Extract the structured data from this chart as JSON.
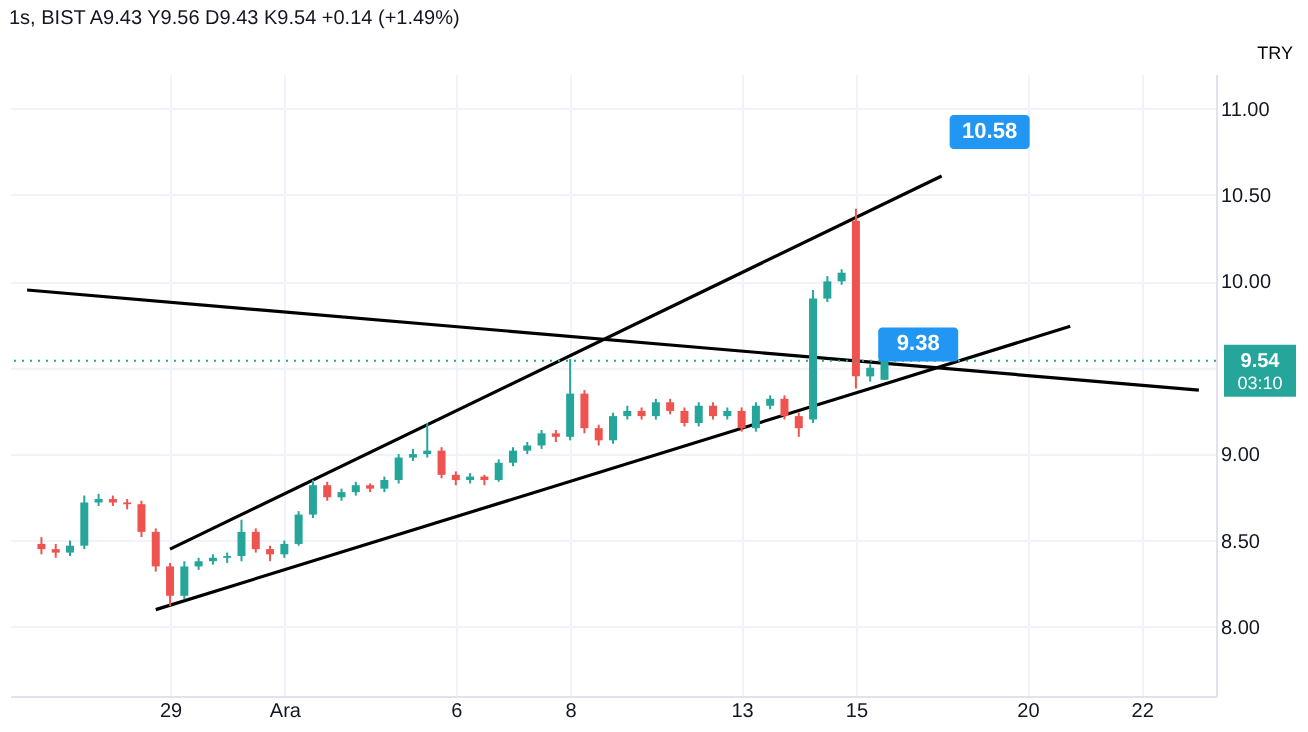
{
  "chart_data": {
    "type": "candlestick",
    "title": "1s, BIST  A9.43 Y9.56 D9.43 K9.54 +0.14 (+1.49%)",
    "ylabel": "TRY",
    "categories": [
      null,
      null,
      null,
      null,
      null,
      null,
      null,
      null,
      null,
      null,
      "29",
      null,
      null,
      null,
      null,
      null,
      null,
      null,
      "Ara",
      null,
      null,
      null,
      null,
      null,
      null,
      null,
      null,
      null,
      null,
      null,
      "6",
      null,
      null,
      null,
      null,
      null,
      null,
      null,
      "8",
      null,
      null,
      null,
      null,
      null,
      null,
      null,
      null,
      null,
      null,
      null,
      "13",
      null,
      null,
      null,
      null,
      null,
      null,
      null,
      "15",
      null,
      null,
      null,
      null,
      null,
      null,
      null,
      null,
      null,
      null,
      null,
      "20",
      null,
      null,
      null,
      null,
      null,
      null,
      null,
      "22",
      null,
      null,
      null,
      null
    ],
    "ohlc": [
      null,
      [
        8.48,
        8.52,
        8.42,
        8.45
      ],
      [
        8.45,
        8.48,
        8.4,
        8.43
      ],
      [
        8.43,
        8.5,
        8.41,
        8.47
      ],
      [
        8.47,
        8.76,
        8.45,
        8.72
      ],
      [
        8.72,
        8.77,
        8.7,
        8.74
      ],
      [
        8.74,
        8.76,
        8.7,
        8.72
      ],
      [
        8.72,
        8.74,
        8.68,
        8.71
      ],
      [
        8.71,
        8.73,
        8.52,
        8.55
      ],
      [
        8.55,
        8.57,
        8.32,
        8.35
      ],
      [
        8.35,
        8.37,
        8.12,
        8.18
      ],
      [
        8.18,
        8.38,
        8.16,
        8.35
      ],
      [
        8.35,
        8.4,
        8.33,
        8.38
      ],
      [
        8.38,
        8.42,
        8.36,
        8.4
      ],
      [
        8.4,
        8.43,
        8.37,
        8.41
      ],
      [
        8.41,
        8.62,
        8.38,
        8.55
      ],
      [
        8.55,
        8.57,
        8.43,
        8.45
      ],
      [
        8.45,
        8.47,
        8.38,
        8.42
      ],
      [
        8.42,
        8.5,
        8.4,
        8.48
      ],
      [
        8.48,
        8.67,
        8.47,
        8.65
      ],
      [
        8.65,
        8.85,
        8.63,
        8.82
      ],
      [
        8.82,
        8.84,
        8.73,
        8.75
      ],
      [
        8.75,
        8.8,
        8.73,
        8.78
      ],
      [
        8.78,
        8.84,
        8.76,
        8.82
      ],
      [
        8.82,
        8.83,
        8.78,
        8.8
      ],
      [
        8.8,
        8.87,
        8.78,
        8.85
      ],
      [
        8.85,
        9,
        8.83,
        8.98
      ],
      [
        8.98,
        9.03,
        8.96,
        9
      ],
      [
        9,
        9.18,
        8.98,
        9.02
      ],
      [
        9.02,
        9.04,
        8.86,
        8.88
      ],
      [
        8.88,
        8.9,
        8.82,
        8.85
      ],
      [
        8.85,
        8.89,
        8.83,
        8.87
      ],
      [
        8.87,
        8.88,
        8.82,
        8.85
      ],
      [
        8.85,
        8.97,
        8.84,
        8.95
      ],
      [
        8.95,
        9.04,
        8.93,
        9.02
      ],
      [
        9.02,
        9.07,
        9,
        9.05
      ],
      [
        9.05,
        9.14,
        9.03,
        9.12
      ],
      [
        9.12,
        9.14,
        9.07,
        9.1
      ],
      [
        9.1,
        9.55,
        9.08,
        9.35
      ],
      [
        9.35,
        9.37,
        9.12,
        9.15
      ],
      [
        9.15,
        9.17,
        9.05,
        9.08
      ],
      [
        9.08,
        9.24,
        9.06,
        9.22
      ],
      [
        9.22,
        9.28,
        9.2,
        9.25
      ],
      [
        9.25,
        9.27,
        9.2,
        9.22
      ],
      [
        9.22,
        9.32,
        9.2,
        9.3
      ],
      [
        9.3,
        9.32,
        9.23,
        9.25
      ],
      [
        9.25,
        9.27,
        9.16,
        9.18
      ],
      [
        9.18,
        9.3,
        9.16,
        9.28
      ],
      [
        9.28,
        9.3,
        9.2,
        9.22
      ],
      [
        9.22,
        9.27,
        9.2,
        9.25
      ],
      [
        9.25,
        9.27,
        9.13,
        9.15
      ],
      [
        9.15,
        9.3,
        9.13,
        9.28
      ],
      [
        9.28,
        9.34,
        9.26,
        9.32
      ],
      [
        9.32,
        9.34,
        9.2,
        9.22
      ],
      [
        9.22,
        9.24,
        9.1,
        9.15
      ],
      [
        9.2,
        9.95,
        9.18,
        9.9
      ],
      [
        9.9,
        10.03,
        9.88,
        10
      ],
      [
        10,
        10.07,
        9.98,
        10.05
      ],
      [
        10.35,
        10.42,
        9.38,
        9.45
      ],
      [
        9.45,
        9.52,
        9.42,
        9.5
      ],
      [
        9.43,
        9.56,
        9.43,
        9.54
      ],
      null,
      null,
      null,
      null,
      null,
      null,
      null,
      null,
      null,
      null,
      null,
      null,
      null,
      null,
      null,
      null,
      null,
      null,
      null,
      null,
      null,
      null
    ],
    "colors": [
      null,
      "#ef5350",
      "#ef5350",
      "#26a69a",
      "#26a69a",
      "#26a69a",
      "#ef5350",
      "#ef5350",
      "#ef5350",
      "#ef5350",
      "#ef5350",
      "#26a69a",
      "#26a69a",
      "#26a69a",
      "#26a69a",
      "#26a69a",
      "#ef5350",
      "#ef5350",
      "#26a69a",
      "#26a69a",
      "#26a69a",
      "#ef5350",
      "#26a69a",
      "#26a69a",
      "#ef5350",
      "#26a69a",
      "#26a69a",
      "#26a69a",
      "#26a69a",
      "#ef5350",
      "#ef5350",
      "#26a69a",
      "#ef5350",
      "#26a69a",
      "#26a69a",
      "#26a69a",
      "#26a69a",
      "#ef5350",
      "#26a69a",
      "#ef5350",
      "#ef5350",
      "#26a69a",
      "#26a69a",
      "#ef5350",
      "#26a69a",
      "#ef5350",
      "#ef5350",
      "#26a69a",
      "#ef5350",
      "#26a69a",
      "#ef5350",
      "#26a69a",
      "#26a69a",
      "#ef5350",
      "#ef5350",
      "#26a69a",
      "#26a69a",
      "#26a69a",
      "#ef5350",
      "#26a69a",
      "#26a69a",
      null,
      null,
      null,
      null,
      null,
      null,
      null,
      null,
      null,
      null,
      null,
      null,
      null,
      null,
      null,
      null,
      null,
      null,
      null,
      null,
      null,
      null
    ],
    "series": [
      {
        "type": "line",
        "color": "#000000",
        "values": [
          null,
          null,
          null,
          null,
          null,
          null,
          null,
          null,
          null,
          null,
          8.45,
          null,
          null,
          null,
          null,
          null,
          null,
          null,
          null,
          null,
          null,
          null,
          null,
          null,
          null,
          null,
          null,
          null,
          null,
          null,
          null,
          null,
          null,
          null,
          null,
          null,
          null,
          null,
          null,
          null,
          null,
          null,
          null,
          null,
          null,
          null,
          null,
          null,
          null,
          null,
          null,
          null,
          null,
          null,
          null,
          null,
          null,
          null,
          null,
          null,
          null,
          null,
          null,
          null,
          10.61,
          null,
          null,
          null,
          null,
          null,
          null,
          null,
          null,
          null,
          null,
          null,
          null,
          null,
          null,
          null,
          null,
          null,
          null
        ]
      },
      {
        "type": "line",
        "color": "#000000",
        "values": [
          null,
          null,
          null,
          null,
          null,
          null,
          null,
          null,
          null,
          8.1,
          null,
          null,
          null,
          null,
          null,
          null,
          null,
          null,
          null,
          null,
          null,
          null,
          null,
          null,
          null,
          null,
          null,
          null,
          null,
          null,
          null,
          null,
          null,
          null,
          null,
          null,
          null,
          null,
          null,
          null,
          null,
          null,
          null,
          null,
          null,
          null,
          null,
          null,
          null,
          null,
          null,
          null,
          null,
          null,
          null,
          null,
          null,
          null,
          null,
          9.38,
          null,
          null,
          null,
          null,
          null,
          null,
          null,
          null,
          null,
          null,
          null,
          null,
          null,
          9.74,
          null,
          null,
          null,
          null,
          null,
          null,
          null,
          null,
          null
        ]
      },
      {
        "type": "line",
        "color": "#000000",
        "values": [
          9.95,
          null,
          null,
          null,
          null,
          null,
          null,
          null,
          null,
          null,
          null,
          null,
          null,
          null,
          null,
          null,
          null,
          null,
          null,
          null,
          null,
          null,
          null,
          null,
          null,
          null,
          null,
          null,
          null,
          null,
          null,
          null,
          null,
          null,
          null,
          null,
          null,
          null,
          null,
          null,
          null,
          null,
          null,
          null,
          null,
          null,
          null,
          null,
          null,
          null,
          null,
          null,
          null,
          null,
          null,
          null,
          null,
          null,
          null,
          null,
          null,
          null,
          null,
          null,
          null,
          null,
          null,
          null,
          null,
          null,
          null,
          null,
          null,
          null,
          null,
          null,
          null,
          null,
          null,
          null,
          null,
          null,
          9.37
        ]
      }
    ],
    "annotations": [
      "10.58",
      "9.38",
      "03:10"
    ],
    "ref_lines": [
      {
        "axis": "y",
        "value": 9.54,
        "label": "9.54",
        "color": "#26a69a",
        "line_style": "dotted"
      }
    ],
    "ylim": [
      7.6,
      11.2
    ],
    "yticks": [
      {
        "value": 8,
        "label": "8.00"
      },
      {
        "value": 8.5,
        "label": "8.50"
      },
      {
        "value": 9,
        "label": "9.00"
      },
      {
        "value": 9.5,
        "label": null
      },
      {
        "value": 10,
        "label": "10.00"
      },
      {
        "value": 10.5,
        "label": "10.50"
      },
      {
        "value": 11,
        "label": "11.00"
      }
    ],
    "grid": true
  }
}
